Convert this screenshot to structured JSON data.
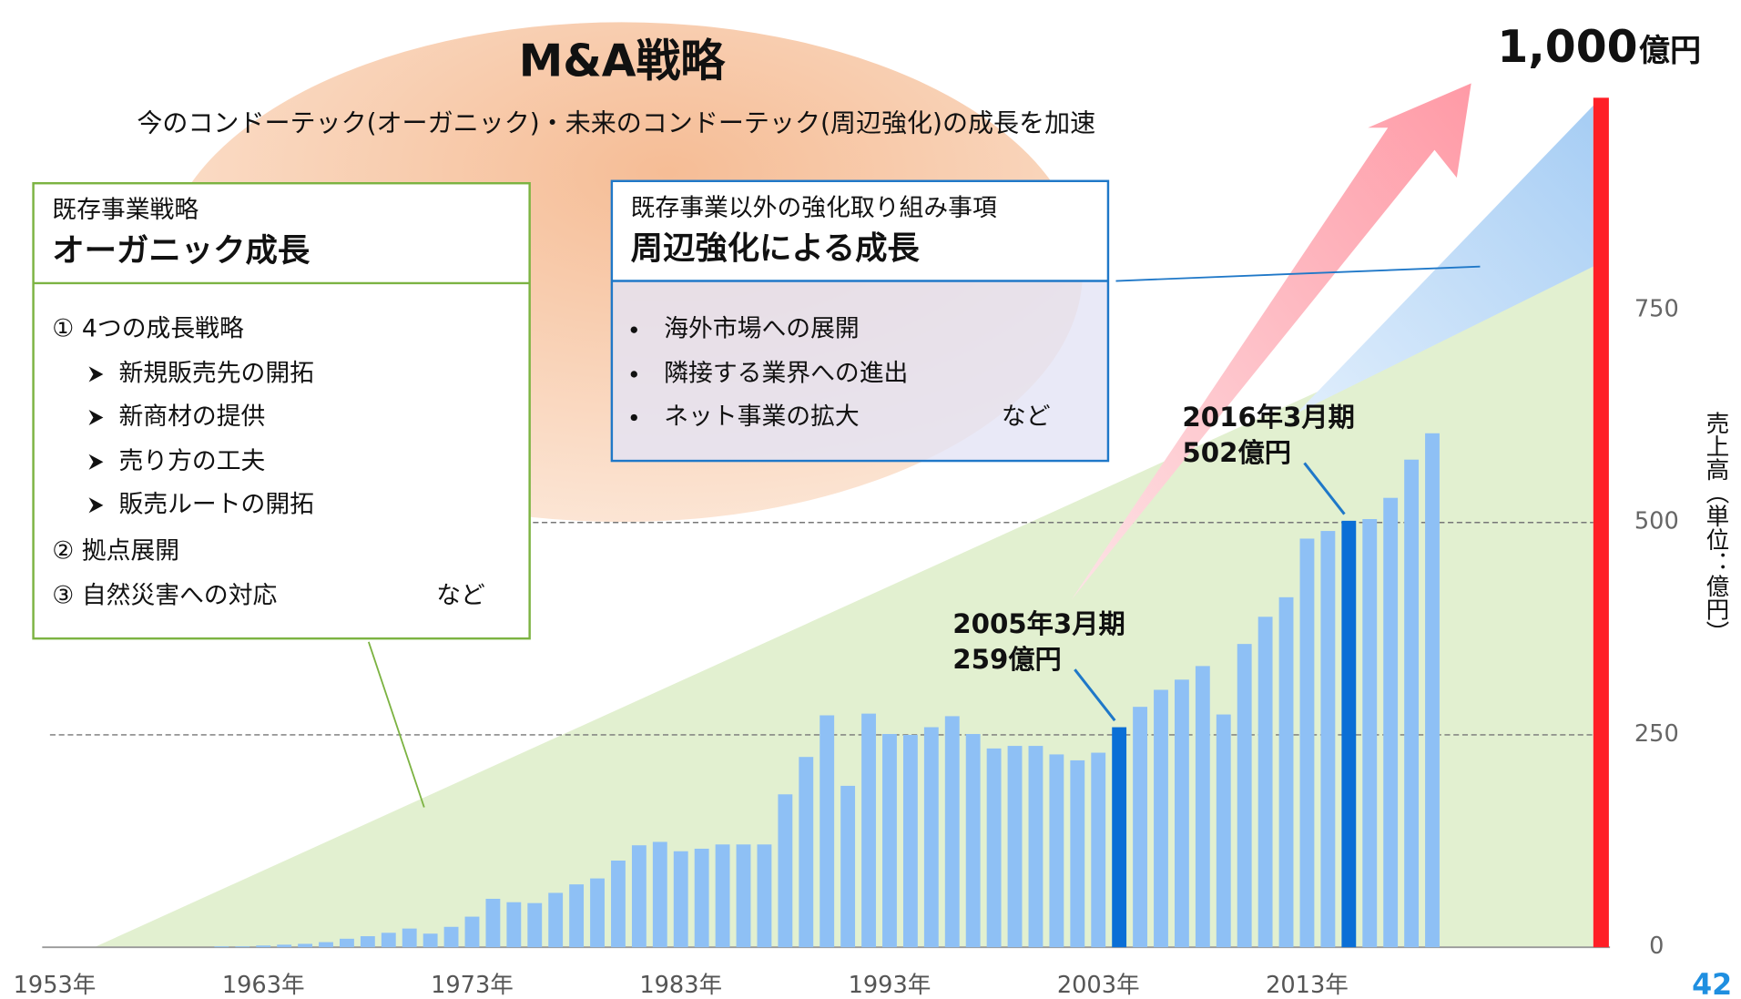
{
  "title": "M&A戦略",
  "subtitle": "今のコンドーテック(オーガニック)・未来のコンドーテック(周辺強化)の成長を加速",
  "max_label": "1,000",
  "max_unit": "億円",
  "page_number": "42",
  "organic_box": {
    "heading": "既存事業戦略",
    "title": "オーガニック成長",
    "items": [
      "①  4つの成長戦略",
      "新規販売先の開拓",
      "新商材の提供",
      "売り方の工夫",
      "販売ルートの開拓",
      "②  拠点展開",
      "③  自然災害への対応"
    ],
    "trailer": "など"
  },
  "peripheral_box": {
    "heading": "既存事業以外の強化取り組み事項",
    "title": "周辺強化による成長",
    "items": [
      "海外市場への展開",
      "隣接する業界への進出",
      "ネット事業の拡大"
    ],
    "trailer": "など"
  },
  "chart_data": {
    "type": "bar",
    "categories": [
      "1953年",
      null,
      null,
      null,
      null,
      null,
      null,
      null,
      null,
      null,
      "1963年",
      null,
      null,
      null,
      null,
      null,
      null,
      null,
      null,
      null,
      "1973年",
      null,
      null,
      null,
      null,
      null,
      null,
      null,
      null,
      null,
      "1983年",
      null,
      null,
      null,
      null,
      null,
      null,
      null,
      null,
      null,
      "1993年",
      null,
      null,
      null,
      null,
      null,
      null,
      null,
      null,
      null,
      "2003年",
      null,
      null,
      null,
      null,
      null,
      null,
      null,
      null,
      null,
      "2013年",
      null,
      null,
      null,
      null,
      null,
      null,
      null
    ],
    "values": [
      0,
      0,
      0,
      0,
      0,
      0,
      0,
      0,
      0,
      1,
      1,
      2,
      3,
      4,
      6,
      10,
      13,
      17,
      22,
      16,
      24,
      36,
      57,
      53,
      52,
      64,
      74,
      81,
      102,
      120,
      124,
      113,
      116,
      121,
      121,
      121,
      180,
      224,
      273,
      190,
      275,
      251,
      250,
      259,
      272,
      251,
      234,
      237,
      237,
      227,
      220,
      229,
      259,
      283,
      303,
      315,
      331,
      274,
      357,
      389,
      412,
      481,
      490,
      502,
      504,
      529,
      574,
      605
    ],
    "value_labels": [
      null,
      null,
      null,
      null,
      null,
      null,
      null,
      null,
      null,
      null,
      null,
      null,
      null,
      null,
      null,
      null,
      null,
      null,
      null,
      null,
      null,
      null,
      null,
      null,
      null,
      null,
      null,
      null,
      null,
      null,
      null,
      null,
      null,
      null,
      null,
      null,
      null,
      null,
      null,
      null,
      null,
      null,
      null,
      null,
      null,
      null,
      null,
      null,
      null,
      null,
      null,
      null,
      "259億円",
      null,
      null,
      null,
      null,
      null,
      null,
      null,
      null,
      null,
      null,
      "502億円",
      null,
      null,
      null,
      null
    ],
    "period_labels": [
      null,
      null,
      null,
      null,
      null,
      null,
      null,
      null,
      null,
      null,
      null,
      null,
      null,
      null,
      null,
      null,
      null,
      null,
      null,
      null,
      null,
      null,
      null,
      null,
      null,
      null,
      null,
      null,
      null,
      null,
      null,
      null,
      null,
      null,
      null,
      null,
      null,
      null,
      null,
      null,
      null,
      null,
      null,
      null,
      null,
      null,
      null,
      null,
      null,
      null,
      null,
      null,
      "2005年3月期",
      null,
      null,
      null,
      null,
      null,
      null,
      null,
      null,
      null,
      null,
      "2016年3月期",
      null,
      null,
      null,
      null
    ],
    "color": "#8ec0f5",
    "highlight_color": "#0a6fd6",
    "ylim": [
      0,
      1000
    ],
    "yticks": [
      0,
      250,
      500,
      750
    ],
    "grid_ticks": [
      false,
      true,
      true,
      false
    ],
    "y_label": "売上高（単位：億円）"
  }
}
